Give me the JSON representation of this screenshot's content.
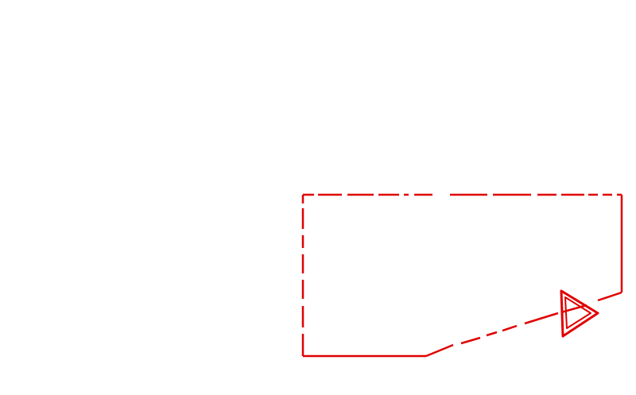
{
  "graphic": {
    "stroke_color": "#e00000",
    "background_color": "#ffffff",
    "icon": "play-triangle-icon"
  }
}
